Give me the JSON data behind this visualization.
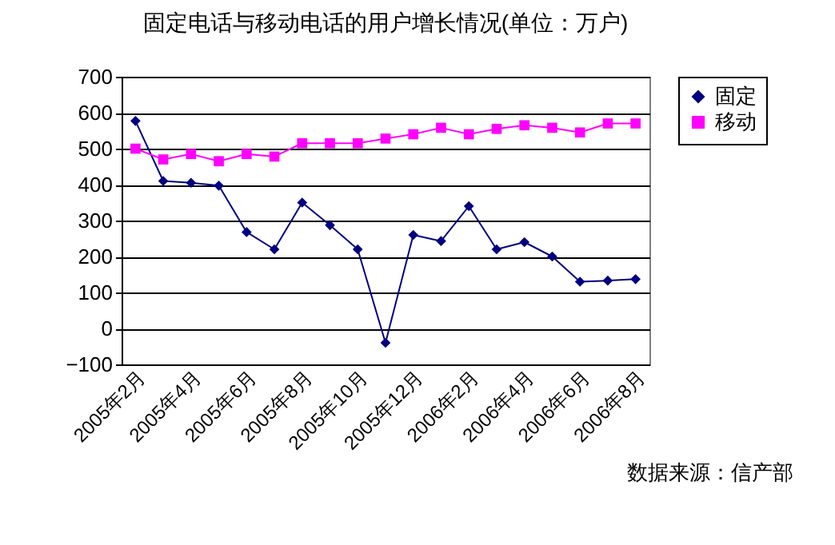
{
  "chart_data": {
    "type": "line",
    "title": "固定电话与移动电话的用户增长情况(单位：万户)",
    "categories": [
      "2005年2月",
      null,
      "2005年4月",
      null,
      "2005年6月",
      null,
      "2005年8月",
      null,
      "2005年10月",
      null,
      "2005年12月",
      null,
      "2006年2月",
      null,
      "2006年4月",
      null,
      "2006年6月",
      null,
      "2006年8月"
    ],
    "series": [
      {
        "name": "固定",
        "color": "#000080",
        "marker": "diamond",
        "values": [
          577,
          410,
          405,
          397,
          268,
          220,
          350,
          287,
          220,
          -40,
          260,
          243,
          340,
          220,
          240,
          200,
          130,
          133,
          137
        ]
      },
      {
        "name": "移动",
        "color": "#ff00ff",
        "marker": "square",
        "values": [
          500,
          470,
          485,
          465,
          485,
          478,
          515,
          515,
          515,
          528,
          540,
          558,
          540,
          555,
          565,
          558,
          545,
          570,
          570
        ]
      }
    ],
    "ylim": [
      -100,
      700
    ],
    "yticks": [
      -100,
      0,
      100,
      200,
      300,
      400,
      500,
      600,
      700
    ],
    "grid": "y",
    "legend": "right",
    "annotations": [
      "数据来源：信产部"
    ]
  }
}
